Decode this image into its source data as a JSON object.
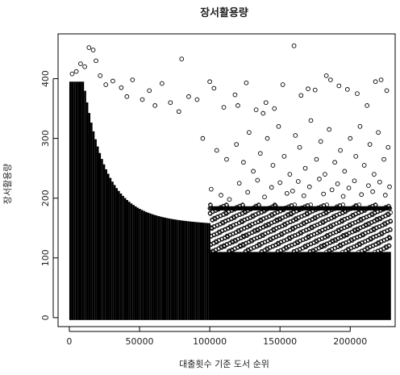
{
  "chart_data": {
    "type": "scatter",
    "title": "장서활용량",
    "xlabel": "대출횟수 기준 도서 순위",
    "ylabel": "장서활용량",
    "xlim": [
      -8000,
      232000
    ],
    "ylim": [
      -15,
      475
    ],
    "x_ticks": [
      0,
      50000,
      100000,
      150000,
      200000
    ],
    "y_ticks": [
      0,
      100,
      200,
      300,
      400
    ],
    "marker": "open-circle",
    "point_color": "#000000",
    "grid": false,
    "legend": "none",
    "series": [
      {
        "points": [
          [
            2000,
            408
          ],
          [
            5000,
            412
          ],
          [
            8000,
            425
          ],
          [
            11000,
            420
          ],
          [
            14000,
            452
          ],
          [
            17000,
            448
          ],
          [
            19000,
            430
          ],
          [
            22000,
            405
          ],
          [
            26000,
            390
          ],
          [
            31000,
            396
          ],
          [
            37000,
            385
          ],
          [
            41000,
            370
          ],
          [
            45000,
            398
          ],
          [
            52000,
            365
          ],
          [
            57000,
            380
          ],
          [
            61000,
            355
          ],
          [
            66000,
            392
          ],
          [
            72000,
            360
          ],
          [
            78000,
            345
          ],
          [
            80000,
            433
          ],
          [
            85000,
            370
          ],
          [
            91000,
            365
          ],
          [
            100000,
            395
          ],
          [
            103000,
            384
          ],
          [
            110000,
            352
          ],
          [
            118000,
            373
          ],
          [
            120000,
            355
          ],
          [
            126000,
            393
          ],
          [
            133000,
            348
          ],
          [
            138000,
            342
          ],
          [
            140000,
            360
          ],
          [
            146000,
            350
          ],
          [
            152000,
            390
          ],
          [
            160000,
            455
          ],
          [
            165000,
            372
          ],
          [
            170000,
            383
          ],
          [
            175000,
            381
          ],
          [
            183000,
            405
          ],
          [
            186000,
            398
          ],
          [
            192000,
            388
          ],
          [
            198000,
            382
          ],
          [
            205000,
            375
          ],
          [
            212000,
            355
          ],
          [
            218000,
            395
          ],
          [
            222000,
            398
          ],
          [
            226000,
            380
          ],
          [
            95000,
            300
          ],
          [
            105000,
            280
          ],
          [
            112000,
            265
          ],
          [
            119000,
            290
          ],
          [
            124000,
            260
          ],
          [
            128000,
            310
          ],
          [
            131000,
            245
          ],
          [
            136000,
            275
          ],
          [
            141000,
            300
          ],
          [
            145000,
            255
          ],
          [
            149000,
            320
          ],
          [
            153000,
            270
          ],
          [
            157000,
            240
          ],
          [
            161000,
            305
          ],
          [
            164000,
            285
          ],
          [
            168000,
            250
          ],
          [
            172000,
            330
          ],
          [
            176000,
            265
          ],
          [
            179000,
            295
          ],
          [
            182000,
            240
          ],
          [
            185000,
            315
          ],
          [
            189000,
            260
          ],
          [
            193000,
            280
          ],
          [
            196000,
            245
          ],
          [
            200000,
            300
          ],
          [
            204000,
            270
          ],
          [
            207000,
            320
          ],
          [
            210000,
            255
          ],
          [
            214000,
            290
          ],
          [
            217000,
            240
          ],
          [
            220000,
            310
          ],
          [
            224000,
            265
          ],
          [
            227000,
            285
          ],
          [
            101000,
            215
          ],
          [
            108000,
            205
          ],
          [
            114000,
            198
          ],
          [
            121000,
            225
          ],
          [
            127000,
            210
          ],
          [
            134000,
            230
          ],
          [
            139000,
            202
          ],
          [
            144000,
            218
          ],
          [
            150000,
            226
          ],
          [
            155000,
            208
          ],
          [
            159000,
            212
          ],
          [
            163000,
            228
          ],
          [
            167000,
            204
          ],
          [
            171000,
            219
          ],
          [
            178000,
            232
          ],
          [
            181000,
            207
          ],
          [
            187000,
            214
          ],
          [
            191000,
            224
          ],
          [
            195000,
            203
          ],
          [
            199000,
            217
          ],
          [
            203000,
            229
          ],
          [
            208000,
            206
          ],
          [
            213000,
            221
          ],
          [
            216000,
            211
          ],
          [
            221000,
            227
          ],
          [
            225000,
            205
          ],
          [
            228000,
            219
          ]
        ]
      }
    ]
  }
}
